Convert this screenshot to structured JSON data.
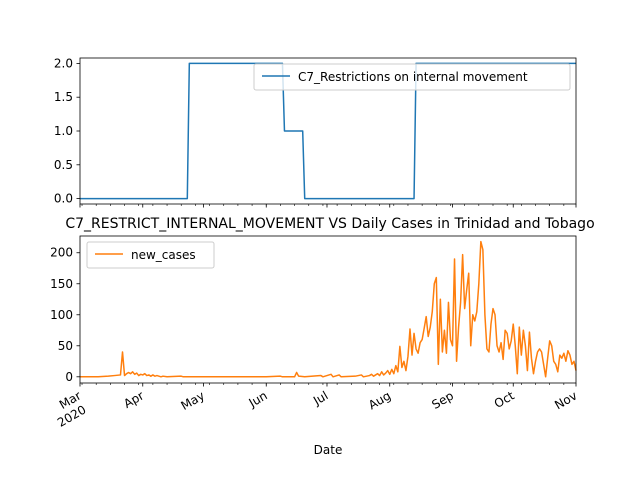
{
  "chart_data": [
    {
      "type": "line",
      "title": "",
      "xlabel": "",
      "ylabel": "",
      "xlim": [
        "2020-03-01",
        "2020-11-01"
      ],
      "ylim": [
        -0.08,
        2.08
      ],
      "yticks": [
        "0.0",
        "0.5",
        "1.0",
        "1.5",
        "2.0"
      ],
      "legend_position": "top-right",
      "series": [
        {
          "name": "C7_Restrictions on internal movement",
          "color": "#1f77b4",
          "points": [
            [
              "2020-03-01",
              0
            ],
            [
              "2020-04-23",
              0
            ],
            [
              "2020-04-24",
              2
            ],
            [
              "2020-06-09",
              2
            ],
            [
              "2020-06-10",
              1
            ],
            [
              "2020-06-19",
              1
            ],
            [
              "2020-06-20",
              0
            ],
            [
              "2020-08-13",
              0
            ],
            [
              "2020-08-14",
              2
            ],
            [
              "2020-11-01",
              2
            ]
          ]
        }
      ]
    },
    {
      "type": "line",
      "title": "C7_RESTRICT_INTERNAL_MOVEMENT VS Daily Cases in Trinidad and Tobago",
      "xlabel": "Date",
      "ylabel": "",
      "xlim": [
        "2020-03-01",
        "2020-11-01"
      ],
      "ylim": [
        -10,
        227
      ],
      "yticks": [
        "0",
        "50",
        "100",
        "150",
        "200"
      ],
      "xticks": [
        {
          "date": "2020-03-01",
          "label": "Mar",
          "sublabel": "2020"
        },
        {
          "date": "2020-04-01",
          "label": "Apr"
        },
        {
          "date": "2020-05-01",
          "label": "May"
        },
        {
          "date": "2020-06-01",
          "label": "Jun"
        },
        {
          "date": "2020-07-01",
          "label": "Jul"
        },
        {
          "date": "2020-08-01",
          "label": "Aug"
        },
        {
          "date": "2020-09-01",
          "label": "Sep"
        },
        {
          "date": "2020-10-01",
          "label": "Oct"
        },
        {
          "date": "2020-11-01",
          "label": "Nov"
        }
      ],
      "legend_position": "upper-left",
      "series": [
        {
          "name": "new_cases",
          "color": "#ff7f0e",
          "points": [
            [
              "2020-03-01",
              0
            ],
            [
              "2020-03-10",
              0
            ],
            [
              "2020-03-15",
              1
            ],
            [
              "2020-03-18",
              2
            ],
            [
              "2020-03-21",
              3
            ],
            [
              "2020-03-22",
              40
            ],
            [
              "2020-03-23",
              2
            ],
            [
              "2020-03-24",
              5
            ],
            [
              "2020-03-25",
              7
            ],
            [
              "2020-03-26",
              5
            ],
            [
              "2020-03-27",
              8
            ],
            [
              "2020-03-28",
              4
            ],
            [
              "2020-03-29",
              6
            ],
            [
              "2020-03-30",
              2
            ],
            [
              "2020-03-31",
              4
            ],
            [
              "2020-04-01",
              3
            ],
            [
              "2020-04-02",
              5
            ],
            [
              "2020-04-03",
              2
            ],
            [
              "2020-04-04",
              3
            ],
            [
              "2020-04-05",
              1
            ],
            [
              "2020-04-06",
              3
            ],
            [
              "2020-04-07",
              1
            ],
            [
              "2020-04-08",
              2
            ],
            [
              "2020-04-10",
              0
            ],
            [
              "2020-04-11",
              1
            ],
            [
              "2020-04-13",
              0
            ],
            [
              "2020-04-20",
              1
            ],
            [
              "2020-04-21",
              0
            ],
            [
              "2020-05-01",
              0
            ],
            [
              "2020-06-01",
              0
            ],
            [
              "2020-06-08",
              1
            ],
            [
              "2020-06-09",
              0
            ],
            [
              "2020-06-15",
              0
            ],
            [
              "2020-06-16",
              7
            ],
            [
              "2020-06-17",
              1
            ],
            [
              "2020-06-20",
              0
            ],
            [
              "2020-06-28",
              2
            ],
            [
              "2020-06-29",
              0
            ],
            [
              "2020-07-03",
              4
            ],
            [
              "2020-07-04",
              0
            ],
            [
              "2020-07-07",
              3
            ],
            [
              "2020-07-08",
              0
            ],
            [
              "2020-07-15",
              1
            ],
            [
              "2020-07-18",
              3
            ],
            [
              "2020-07-19",
              0
            ],
            [
              "2020-07-22",
              2
            ],
            [
              "2020-07-23",
              4
            ],
            [
              "2020-07-24",
              1
            ],
            [
              "2020-07-26",
              5
            ],
            [
              "2020-07-27",
              2
            ],
            [
              "2020-07-28",
              8
            ],
            [
              "2020-07-29",
              3
            ],
            [
              "2020-07-30",
              6
            ],
            [
              "2020-07-31",
              10
            ],
            [
              "2020-08-01",
              4
            ],
            [
              "2020-08-02",
              12
            ],
            [
              "2020-08-03",
              5
            ],
            [
              "2020-08-04",
              18
            ],
            [
              "2020-08-05",
              8
            ],
            [
              "2020-08-06",
              49
            ],
            [
              "2020-08-07",
              15
            ],
            [
              "2020-08-08",
              25
            ],
            [
              "2020-08-09",
              10
            ],
            [
              "2020-08-10",
              33
            ],
            [
              "2020-08-11",
              77
            ],
            [
              "2020-08-12",
              35
            ],
            [
              "2020-08-13",
              70
            ],
            [
              "2020-08-14",
              45
            ],
            [
              "2020-08-15",
              38
            ],
            [
              "2020-08-16",
              55
            ],
            [
              "2020-08-17",
              60
            ],
            [
              "2020-08-18",
              78
            ],
            [
              "2020-08-19",
              97
            ],
            [
              "2020-08-20",
              65
            ],
            [
              "2020-08-21",
              80
            ],
            [
              "2020-08-22",
              105
            ],
            [
              "2020-08-23",
              150
            ],
            [
              "2020-08-24",
              160
            ],
            [
              "2020-08-25",
              20
            ],
            [
              "2020-08-26",
              125
            ],
            [
              "2020-08-27",
              40
            ],
            [
              "2020-08-28",
              75
            ],
            [
              "2020-08-29",
              38
            ],
            [
              "2020-08-30",
              120
            ],
            [
              "2020-08-31",
              60
            ],
            [
              "2020-09-01",
              50
            ],
            [
              "2020-09-02",
              190
            ],
            [
              "2020-09-03",
              25
            ],
            [
              "2020-09-04",
              80
            ],
            [
              "2020-09-05",
              120
            ],
            [
              "2020-09-06",
              197
            ],
            [
              "2020-09-07",
              110
            ],
            [
              "2020-09-08",
              140
            ],
            [
              "2020-09-09",
              167
            ],
            [
              "2020-09-10",
              50
            ],
            [
              "2020-09-11",
              100
            ],
            [
              "2020-09-12",
              90
            ],
            [
              "2020-09-13",
              105
            ],
            [
              "2020-09-14",
              150
            ],
            [
              "2020-09-15",
              218
            ],
            [
              "2020-09-16",
              205
            ],
            [
              "2020-09-17",
              100
            ],
            [
              "2020-09-18",
              45
            ],
            [
              "2020-09-19",
              40
            ],
            [
              "2020-09-20",
              85
            ],
            [
              "2020-09-21",
              110
            ],
            [
              "2020-09-22",
              100
            ],
            [
              "2020-09-23",
              50
            ],
            [
              "2020-09-24",
              40
            ],
            [
              "2020-09-25",
              55
            ],
            [
              "2020-09-26",
              28
            ],
            [
              "2020-09-27",
              75
            ],
            [
              "2020-09-28",
              70
            ],
            [
              "2020-09-29",
              45
            ],
            [
              "2020-09-30",
              58
            ],
            [
              "2020-10-01",
              85
            ],
            [
              "2020-10-02",
              50
            ],
            [
              "2020-10-03",
              5
            ],
            [
              "2020-10-04",
              80
            ],
            [
              "2020-10-05",
              35
            ],
            [
              "2020-10-06",
              75
            ],
            [
              "2020-10-07",
              50
            ],
            [
              "2020-10-08",
              10
            ],
            [
              "2020-10-09",
              72
            ],
            [
              "2020-10-10",
              30
            ],
            [
              "2020-10-11",
              5
            ],
            [
              "2020-10-12",
              25
            ],
            [
              "2020-10-13",
              40
            ],
            [
              "2020-10-14",
              45
            ],
            [
              "2020-10-15",
              40
            ],
            [
              "2020-10-16",
              20
            ],
            [
              "2020-10-17",
              0
            ],
            [
              "2020-10-18",
              30
            ],
            [
              "2020-10-19",
              58
            ],
            [
              "2020-10-20",
              50
            ],
            [
              "2020-10-21",
              25
            ],
            [
              "2020-10-22",
              20
            ],
            [
              "2020-10-23",
              8
            ],
            [
              "2020-10-24",
              35
            ],
            [
              "2020-10-25",
              30
            ],
            [
              "2020-10-26",
              38
            ],
            [
              "2020-10-27",
              25
            ],
            [
              "2020-10-28",
              42
            ],
            [
              "2020-10-29",
              35
            ],
            [
              "2020-10-30",
              20
            ],
            [
              "2020-10-31",
              25
            ],
            [
              "2020-11-01",
              10
            ]
          ]
        }
      ]
    }
  ]
}
